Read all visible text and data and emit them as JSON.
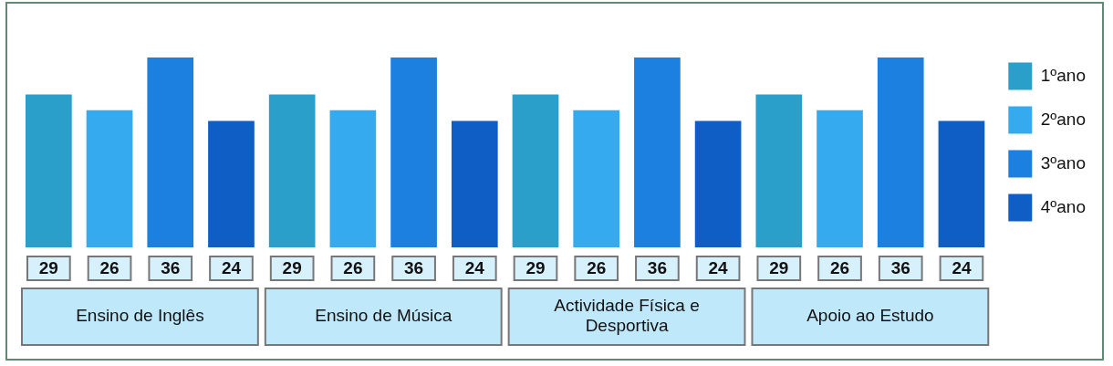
{
  "chart_data": {
    "type": "bar",
    "categories": [
      "Ensino de Inglês",
      "Ensino de Música",
      "Actividade Física e Desportiva",
      "Apoio ao Estudo"
    ],
    "series": [
      {
        "name": "1ºano",
        "color": "#2a9fc9",
        "values": [
          29,
          29,
          29,
          29
        ]
      },
      {
        "name": "2ºano",
        "color": "#36aaee",
        "values": [
          26,
          26,
          26,
          26
        ]
      },
      {
        "name": "3ºano",
        "color": "#1b80e0",
        "values": [
          36,
          36,
          36,
          36
        ]
      },
      {
        "name": "4ºano",
        "color": "#0e5ec6",
        "values": [
          24,
          24,
          24,
          24
        ]
      }
    ],
    "data_labels": true,
    "legend": "right"
  }
}
